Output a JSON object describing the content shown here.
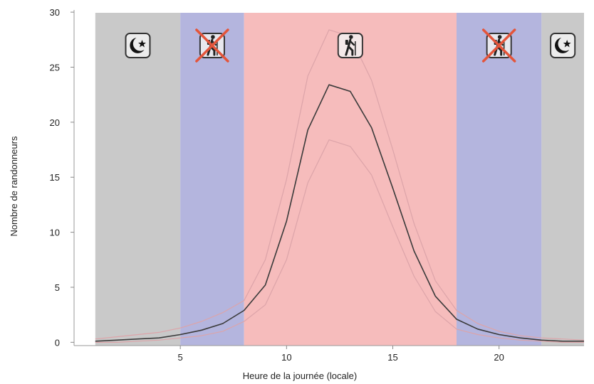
{
  "chart_data": {
    "type": "line",
    "title": "",
    "xlabel": "Heure de la journée (locale)",
    "ylabel": "Nombre de randonneurs",
    "xlim": [
      0.0,
      24.0
    ],
    "ylim": [
      -0.3,
      30.2
    ],
    "xticks": [
      5,
      10,
      15,
      20
    ],
    "yticks": [
      0,
      5,
      10,
      15,
      20,
      25,
      30
    ],
    "grid": false,
    "legend": "none",
    "bands": [
      {
        "from": 1.0,
        "to": 5.0,
        "kind": "night",
        "color": "#c9c9c9",
        "icon": "moon-icon"
      },
      {
        "from": 5.0,
        "to": 8.0,
        "kind": "no-hiking",
        "color": "#b4b5de",
        "icon": "no-hiker-icon"
      },
      {
        "from": 8.0,
        "to": 18.0,
        "kind": "hiking",
        "color": "#f6bcbc",
        "icon": "hiker-icon"
      },
      {
        "from": 18.0,
        "to": 22.0,
        "kind": "no-hiking",
        "color": "#b4b5de",
        "icon": "no-hiker-icon"
      },
      {
        "from": 22.0,
        "to": 24.0,
        "kind": "night",
        "color": "#c9c9c9",
        "icon": "moon-icon"
      }
    ],
    "x": [
      1,
      2,
      3,
      4,
      5,
      6,
      7,
      8,
      9,
      10,
      11,
      12,
      13,
      14,
      15,
      16,
      17,
      18,
      19,
      20,
      21,
      22,
      23,
      24
    ],
    "series": [
      {
        "role": "mean",
        "color": "#3a3a3a",
        "values": [
          0.1,
          0.2,
          0.3,
          0.4,
          0.7,
          1.1,
          1.7,
          2.9,
          5.2,
          11.0,
          19.3,
          23.4,
          22.8,
          19.5,
          14.0,
          8.3,
          4.2,
          2.1,
          1.2,
          0.7,
          0.4,
          0.2,
          0.1,
          0.1
        ]
      },
      {
        "role": "upper",
        "color": "#dca4a9",
        "values": [
          0.3,
          0.5,
          0.7,
          0.9,
          1.3,
          1.9,
          2.7,
          3.8,
          7.5,
          14.8,
          24.2,
          28.4,
          27.8,
          23.8,
          17.5,
          10.8,
          5.6,
          2.9,
          1.7,
          1.0,
          0.6,
          0.4,
          0.3,
          0.2
        ]
      },
      {
        "role": "lower",
        "color": "#dca4a9",
        "values": [
          0.0,
          0.0,
          0.1,
          0.2,
          0.4,
          0.6,
          1.0,
          1.9,
          3.4,
          7.5,
          14.5,
          18.4,
          17.8,
          15.2,
          10.5,
          6.0,
          2.8,
          1.2,
          0.7,
          0.4,
          0.2,
          0.1,
          0.0,
          0.0
        ]
      }
    ]
  }
}
